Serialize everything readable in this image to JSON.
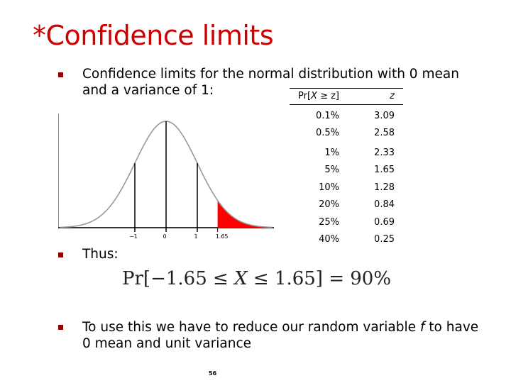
{
  "slide": {
    "title": "*Confidence limits",
    "bullet1": "Confidence limits for the normal distribution with 0 mean and a variance of 1:",
    "bullet2": "Thus:",
    "bullet3_pre": "To use this we have to reduce our random variable ",
    "bullet3_var": "f",
    "bullet3_post": " to have 0 mean and unit variance",
    "formula": {
      "pre": "Pr[−1.65 ≤ ",
      "var": "X",
      "post": " ≤ 1.65] = 90%"
    },
    "page_number": "56"
  },
  "table": {
    "header_left_pre": "Pr[",
    "header_left_var": "X",
    "header_left_post": " ≥ z]",
    "header_right": "z",
    "rows": [
      {
        "p": "0.1%",
        "z": "3.09"
      },
      {
        "p": "0.5%",
        "z": "2.58"
      },
      {
        "p": "1%",
        "z": "2.33"
      },
      {
        "p": "5%",
        "z": "1.65"
      },
      {
        "p": "10%",
        "z": "1.28"
      },
      {
        "p": "20%",
        "z": "0.84"
      },
      {
        "p": "25%",
        "z": "0.69"
      },
      {
        "p": "40%",
        "z": "0.25"
      }
    ]
  },
  "chart_data": {
    "type": "area",
    "title": "",
    "xlabel": "",
    "ylabel": "",
    "xlim": [
      -3.4,
      3.4
    ],
    "tick_labels": [
      "−1",
      "0",
      "1",
      "1.65"
    ],
    "tick_values": [
      -1,
      0,
      1,
      1.65
    ],
    "curve": "standard normal density",
    "vertical_lines_at": [
      -1,
      0,
      1
    ],
    "shaded_from": 1.65,
    "shade_color": "#ff0000",
    "curve_color": "#999999",
    "grid": false
  }
}
